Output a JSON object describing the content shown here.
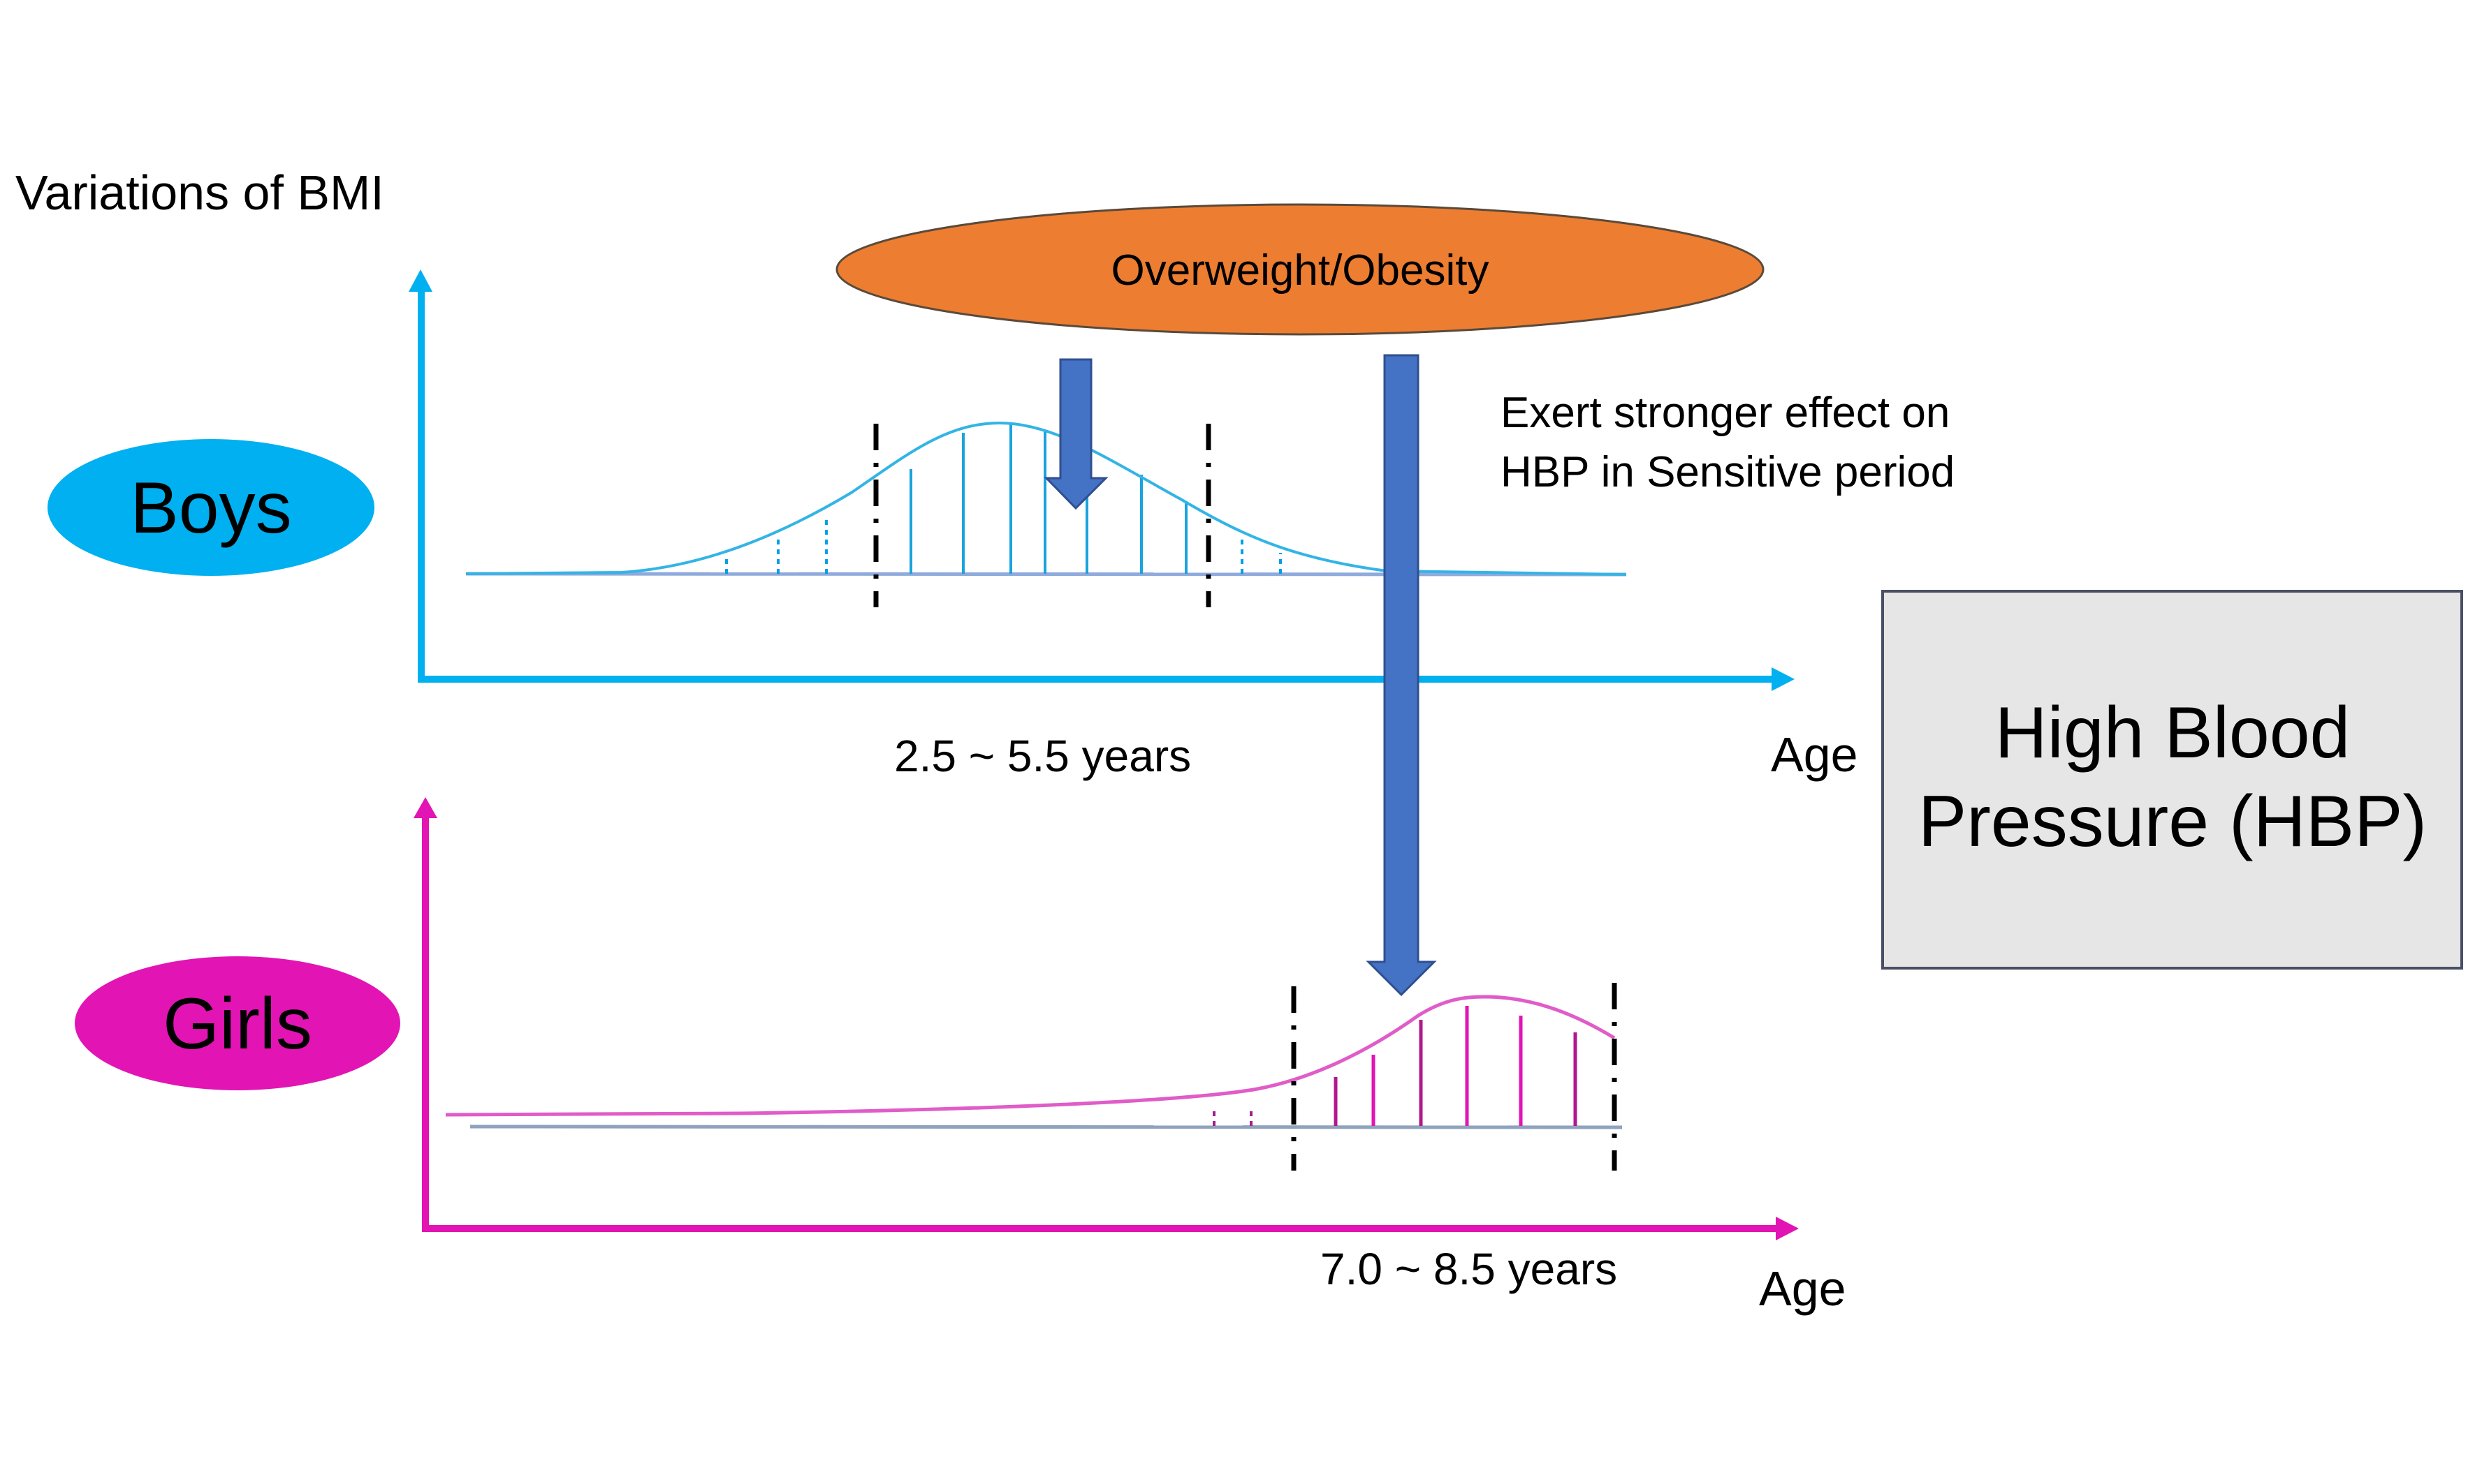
{
  "title": "Variations of BMI",
  "exposure": {
    "label": "Overweight/Obesity",
    "color": "#ED7D31"
  },
  "effect_note": {
    "line1": "Exert stronger effect on",
    "line2": "HBP in Sensitive period"
  },
  "boys": {
    "label": "Boys",
    "color": "#00B0F0",
    "axis_label": "Age",
    "period_label": "2.5 ~ 5.5 years"
  },
  "girls": {
    "label": "Girls",
    "color": "#E214B4",
    "axis_label": "Age",
    "period_label": "7.0 ~ 8.5 years"
  },
  "outcome": {
    "line1": "High Blood",
    "line2": "Pressure (HBP)",
    "fill": "#E6E6E6"
  },
  "arrow_color": "#4472C4"
}
